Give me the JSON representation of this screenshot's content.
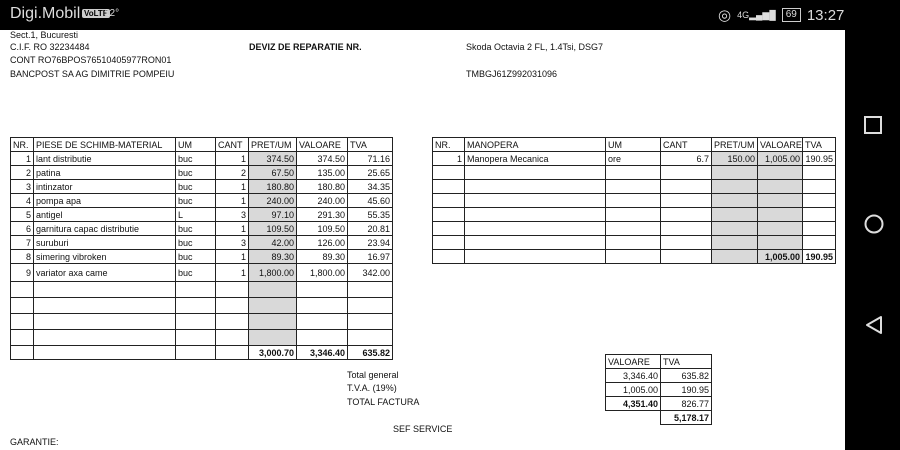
{
  "status_bar": {
    "carrier": "Digi.Mobil",
    "volte": "VoLTE",
    "temperature": "12°",
    "network": "4G",
    "battery": "69",
    "time": "13:27"
  },
  "header": {
    "address": "Sect.1, Bucuresti",
    "cif": "C.I.F. RO 32234484",
    "cont": "CONT RO76BPOS76510405977RON01",
    "bank": "BANCPOST SA  AG DIMITRIE POMPEIU",
    "title": "DEVIZ DE REPARATIE NR.",
    "car": "Skoda Octavia 2 FL, 1.4Tsi, DSG7",
    "vin": "TMBGJ61Z992031096"
  },
  "parts": {
    "columns": [
      "NR.",
      "PIESE DE SCHIMB-MATERIAL",
      "UM",
      "CANT",
      "PRET/UM",
      "VALOARE",
      "TVA"
    ],
    "rows": [
      [
        "1",
        "lant distributie",
        "buc",
        "1",
        "374.50",
        "374.50",
        "71.16"
      ],
      [
        "2",
        "patina",
        "buc",
        "2",
        "67.50",
        "135.00",
        "25.65"
      ],
      [
        "3",
        "intinzator",
        "buc",
        "1",
        "180.80",
        "180.80",
        "34.35"
      ],
      [
        "4",
        "pompa apa",
        "buc",
        "1",
        "240.00",
        "240.00",
        "45.60"
      ],
      [
        "5",
        "antigel",
        "L",
        "3",
        "97.10",
        "291.30",
        "55.35"
      ],
      [
        "6",
        "garnitura capac distributie",
        "buc",
        "1",
        "109.50",
        "109.50",
        "20.81"
      ],
      [
        "7",
        "suruburi",
        "buc",
        "3",
        "42.00",
        "126.00",
        "23.94"
      ],
      [
        "8",
        "simering vibroken",
        "buc",
        "1",
        "89.30",
        "89.30",
        "16.97"
      ],
      [
        "9",
        "variator axa came",
        "buc",
        "1",
        "1,800.00",
        "1,800.00",
        "342.00"
      ]
    ],
    "empty_rows": 4,
    "totals": [
      "3,000.70",
      "3,346.40",
      "635.82"
    ]
  },
  "labor": {
    "columns": [
      "NR.",
      "MANOPERA",
      "UM",
      "CANT",
      "PRET/UM",
      "VALOARE",
      "TVA"
    ],
    "rows": [
      [
        "1",
        "Manopera Mecanica",
        "ore",
        "6.7",
        "150.00",
        "1,005.00",
        "190.95"
      ]
    ],
    "empty_rows": 6,
    "totals": [
      "1,005.00",
      "190.95"
    ]
  },
  "summary": {
    "labels": [
      "Total general",
      "T.V.A. (19%)",
      "TOTAL FACTURA"
    ],
    "columns": [
      "VALOARE",
      "TVA"
    ],
    "rows": [
      [
        "3,346.40",
        "635.82"
      ],
      [
        "1,005.00",
        "190.95"
      ],
      [
        "4,351.40",
        "826.77"
      ]
    ],
    "grand_total": "5,178.17"
  },
  "footer": {
    "sef_service": "SEF SERVICE",
    "garantie": "GARANTIE:"
  },
  "nav": {
    "icons": [
      "recent-apps-icon",
      "home-icon",
      "back-icon"
    ]
  }
}
